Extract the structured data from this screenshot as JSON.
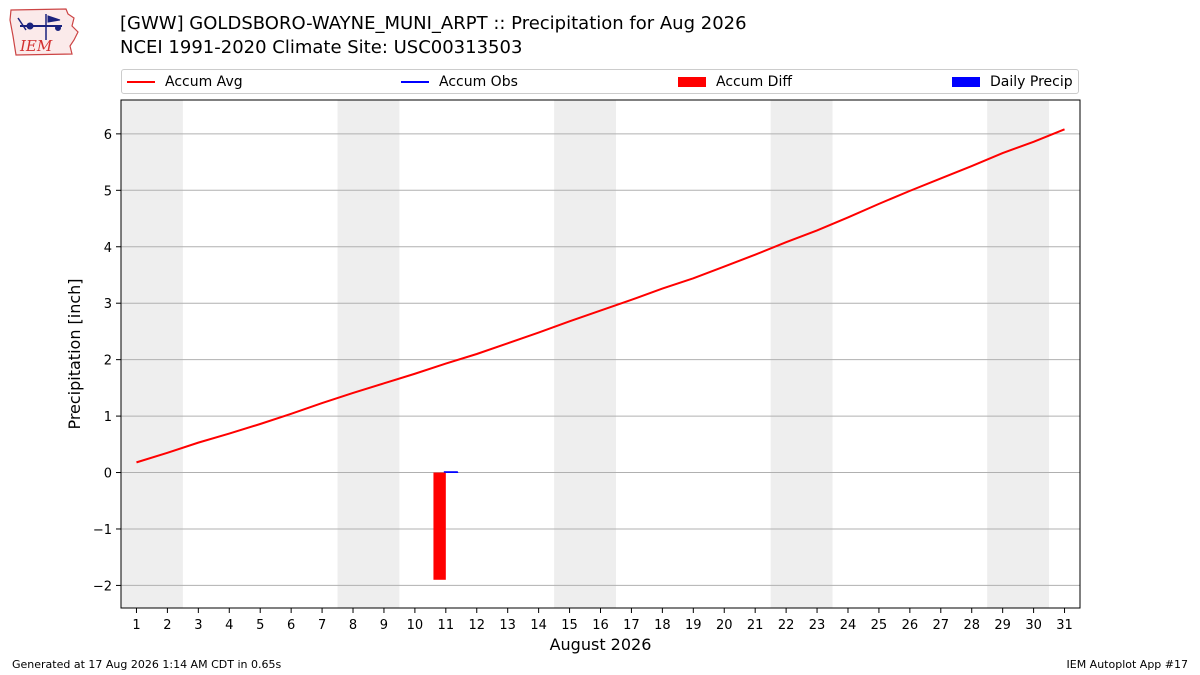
{
  "logo": {
    "text": "IEM",
    "icon": "iem-weather-station-logo"
  },
  "title": {
    "line1": "[GWW] GOLDSBORO-WAYNE_MUNI_ARPT :: Precipitation for Aug 2026",
    "line2": "NCEI 1991-2020 Climate Site: USC00313503"
  },
  "legend": {
    "items": [
      {
        "label": "Accum Avg",
        "kind": "line",
        "color": "#ff0000"
      },
      {
        "label": "Accum Obs",
        "kind": "line",
        "color": "#0000ff"
      },
      {
        "label": "Accum Diff",
        "kind": "bar",
        "color": "#ff0000"
      },
      {
        "label": "Daily Precip",
        "kind": "bar",
        "color": "#0000ff"
      }
    ]
  },
  "footer": {
    "generated": "Generated at 17 Aug 2026 1:14 AM CDT in 0.65s",
    "app": "IEM Autoplot App #17"
  },
  "chart_data": {
    "type": "line",
    "xlabel": "August 2026",
    "ylabel": "Precipitation [inch]",
    "xlim": [
      0.5,
      31.5
    ],
    "ylim": [
      -2.4,
      6.6
    ],
    "x_ticks": [
      1,
      2,
      3,
      4,
      5,
      6,
      7,
      8,
      9,
      10,
      11,
      12,
      13,
      14,
      15,
      16,
      17,
      18,
      19,
      20,
      21,
      22,
      23,
      24,
      25,
      26,
      27,
      28,
      29,
      30,
      31
    ],
    "y_ticks": [
      -2,
      -1,
      0,
      1,
      2,
      3,
      4,
      5,
      6
    ],
    "y_tick_labels": [
      "−2",
      "−1",
      "0",
      "1",
      "2",
      "3",
      "4",
      "5",
      "6"
    ],
    "grid": "horizontal",
    "weekend_shading": [
      [
        1,
        2
      ],
      [
        8,
        9
      ],
      [
        15,
        16
      ],
      [
        22,
        23
      ],
      [
        29,
        30
      ]
    ],
    "shade_color": "#eeeeee",
    "series": [
      {
        "name": "Accum Avg",
        "kind": "line",
        "color": "#ff0000",
        "x": [
          1,
          2,
          3,
          4,
          5,
          6,
          7,
          8,
          9,
          10,
          11,
          12,
          13,
          14,
          15,
          16,
          17,
          18,
          19,
          20,
          21,
          22,
          23,
          24,
          25,
          26,
          27,
          28,
          29,
          30,
          31
        ],
        "values": [
          0.18,
          0.35,
          0.53,
          0.69,
          0.86,
          1.04,
          1.23,
          1.41,
          1.58,
          1.75,
          1.93,
          2.1,
          2.29,
          2.48,
          2.68,
          2.87,
          3.06,
          3.26,
          3.44,
          3.65,
          3.86,
          4.08,
          4.29,
          4.52,
          4.76,
          4.99,
          5.21,
          5.43,
          5.66,
          5.86,
          6.08
        ]
      },
      {
        "name": "Accum Obs",
        "kind": "line",
        "color": "#0000ff",
        "x": [
          11
        ],
        "values": [
          0.01
        ]
      },
      {
        "name": "Accum Diff",
        "kind": "bar",
        "color": "#ff0000",
        "x": [
          10.8
        ],
        "values": [
          -1.9
        ]
      },
      {
        "name": "Daily Precip",
        "kind": "bar",
        "color": "#0000ff",
        "x": [
          11.2
        ],
        "values": [
          0.01
        ]
      }
    ]
  }
}
